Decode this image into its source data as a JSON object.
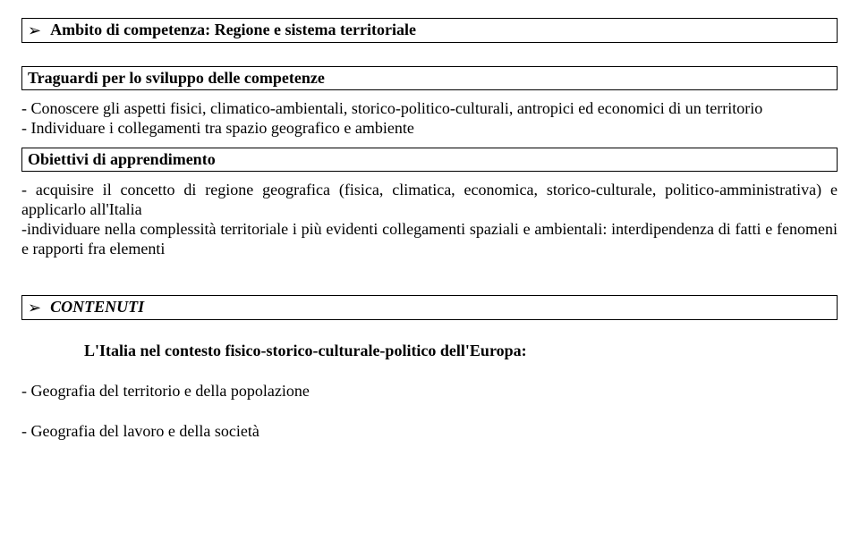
{
  "colors": {
    "text": "#000000",
    "background": "#ffffff",
    "border": "#000000"
  },
  "typography": {
    "family": "Times New Roman",
    "base_size_pt": 14,
    "bold_weight": 700
  },
  "box1": {
    "bullet": "➢",
    "title": "Ambito di competenza: Regione e sistema territoriale"
  },
  "box2": {
    "title": "Traguardi per lo sviluppo delle competenze"
  },
  "para1": "- Conoscere gli aspetti  fisici, climatico-ambientali, storico-politico-culturali, antropici ed economici di un territorio",
  "para1b": "- Individuare i collegamenti tra spazio geografico e ambiente",
  "box3": {
    "title": "Obiettivi di apprendimento"
  },
  "para2": "- acquisire il concetto di regione geografica (fisica, climatica, economica,  storico-culturale, politico-amministrativa) e applicarlo  all'Italia",
  "para3": "-individuare  nella complessità territoriale i più evidenti collegamenti spaziali e ambientali: interdipendenza di fatti e fenomeni e rapporti fra elementi",
  "contenuti": {
    "bullet": "➢",
    "label": "CONTENUTI"
  },
  "subhead": "L'Italia nel contesto fisico-storico-culturale-politico dell'Europa:",
  "item1": "- Geografia del territorio e  della popolazione",
  "item2": "- Geografia del lavoro e della società"
}
